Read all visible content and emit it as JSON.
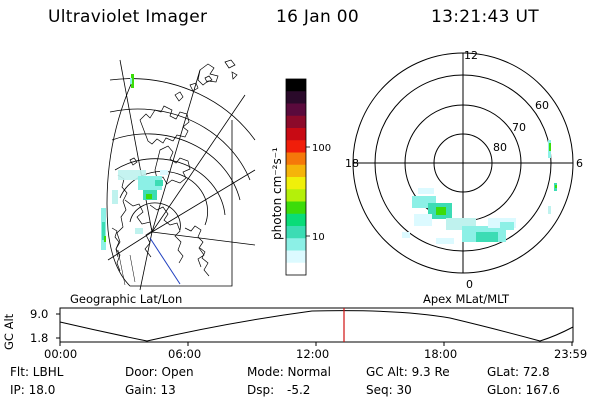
{
  "header": {
    "title": "Ultraviolet Imager",
    "date": "16 Jan 00",
    "time": "13:21:43 UT"
  },
  "colorbar": {
    "unit_label": "photon cm⁻²s⁻¹",
    "tick_labels": [
      "100",
      "10"
    ],
    "colors": [
      "#000000",
      "#2a0a2a",
      "#5a0a3c",
      "#8c0a2a",
      "#c80a14",
      "#f01e0a",
      "#f5780a",
      "#f5b40a",
      "#f0f00a",
      "#b4f00a",
      "#3cdc0a",
      "#0adc78",
      "#3cdcb4",
      "#8cf0e6",
      "#dcfaff",
      "#ffffff"
    ]
  },
  "map_labels": {
    "left": "Geographic Lat/Lon",
    "right": "Apex MLat/MLT"
  },
  "polar": {
    "mlt_labels": [
      "12",
      "18",
      "6",
      "0"
    ],
    "lat_labels": [
      "60",
      "70",
      "80"
    ]
  },
  "timeline": {
    "ylabel": "GC Alt",
    "yticks": [
      "9.0",
      "1.8"
    ],
    "xticks": [
      "00:00",
      "06:00",
      "12:00",
      "18:00",
      "23:59"
    ],
    "marker_color": "#d01010"
  },
  "info": {
    "filter": "Flt: LBHL",
    "ip": "IP: 18.0",
    "door": "Door: Open",
    "gain": "Gain: 13",
    "mode": "Mode: Normal",
    "dsp_label": "Dsp:",
    "dsp_value": "-5.2",
    "gc_alt": "GC Alt: 9.3 Re",
    "seq": "Seq: 30",
    "glat": "GLat: 72.8",
    "glon": "GLon: 167.6"
  }
}
